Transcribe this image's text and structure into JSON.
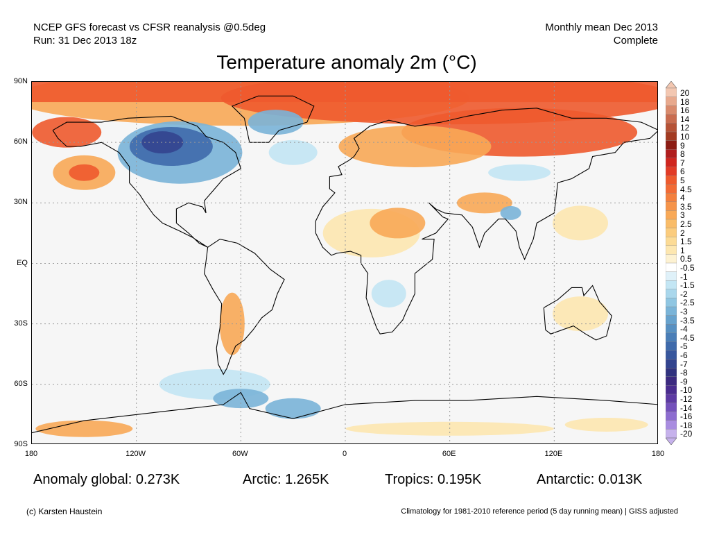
{
  "header": {
    "line1_left": "NCEP GFS forecast vs CFSR reanalysis @0.5deg",
    "line2_left": "Run: 31 Dec 2013 18z",
    "line1_right": "Monthly mean Dec 2013",
    "line2_right": "Complete"
  },
  "title": "Temperature anomaly 2m (°C)",
  "axes": {
    "lat_labels": [
      "90N",
      "60N",
      "30N",
      "EQ",
      "30S",
      "60S",
      "90S"
    ],
    "lon_labels": [
      "180",
      "120W",
      "60W",
      "0",
      "60E",
      "120E",
      "180"
    ]
  },
  "stats": {
    "global": "Anomaly global: 0.273K",
    "arctic": "Arctic: 1.265K",
    "tropics": "Tropics: 0.195K",
    "antarctic": "Antarctic: 0.013K"
  },
  "footer": {
    "credit": "(c) Karsten Haustein",
    "note": "Climatology for 1981-2010 reference period (5 day running mean) | GISS adjusted"
  },
  "colorbar": {
    "labels": [
      "20",
      "18",
      "16",
      "14",
      "12",
      "10",
      "9",
      "8",
      "7",
      "6",
      "5",
      "4.5",
      "4",
      "3.5",
      "3",
      "2.5",
      "2",
      "1.5",
      "1",
      "0.5",
      "-0.5",
      "-1",
      "-1.5",
      "-2",
      "-2.5",
      "-3",
      "-3.5",
      "-4",
      "-4.5",
      "-5",
      "-6",
      "-7",
      "-8",
      "-9",
      "-10",
      "-12",
      "-14",
      "-16",
      "-18",
      "-20"
    ],
    "colors": [
      "#f3c7b1",
      "#e8a98d",
      "#d98a6c",
      "#c96c4f",
      "#b65236",
      "#a33b22",
      "#8c1d14",
      "#b11e1e",
      "#d0261f",
      "#e23b26",
      "#ee5a2d",
      "#f26b35",
      "#f4803e",
      "#f6944a",
      "#f8a957",
      "#f9bc68",
      "#fbcc7d",
      "#fcdb95",
      "#fde7b0",
      "#fdf2d2",
      "#ffffff",
      "#dff1f9",
      "#c3e6f4",
      "#a9d7ec",
      "#8fc6e2",
      "#7ab4d8",
      "#67a2cd",
      "#5790c2",
      "#4a7eb7",
      "#3f6aab",
      "#38579d",
      "#33448f",
      "#31337f",
      "#3c2a80",
      "#4a2c8f",
      "#5d3aa3",
      "#7451bb",
      "#8d6dd0",
      "#a98de0",
      "#c6b2ec"
    ]
  },
  "map_colors": {
    "ocean_neutral": "#f6f6f6",
    "warm_light": "#fde7b0",
    "warm_mid": "#f8a957",
    "warm_strong": "#ee5a2d",
    "warm_very": "#d0261f",
    "cold_light": "#c3e6f4",
    "cold_mid": "#7ab4d8",
    "cold_strong": "#3f6aab",
    "cold_very": "#33448f"
  }
}
